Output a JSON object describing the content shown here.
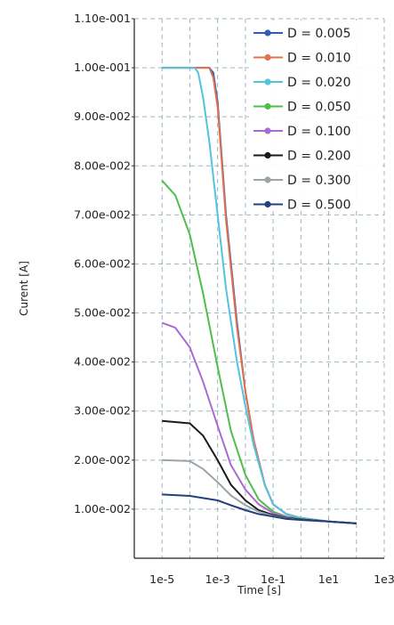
{
  "chart_data": {
    "type": "line",
    "xlabel": "Time [s]",
    "ylabel": "Curent [A]",
    "x_scale": "log",
    "xlim": [
      1e-06,
      1000
    ],
    "ylim": [
      0,
      0.11
    ],
    "x_ticks": [
      {
        "value": 1e-05,
        "label": "1e-5"
      },
      {
        "value": 0.001,
        "label": "1e-3"
      },
      {
        "value": 0.1,
        "label": "1e-1"
      },
      {
        "value": 10,
        "label": "1e1"
      },
      {
        "value": 1000,
        "label": "1e3"
      }
    ],
    "y_ticks": [
      {
        "value": 0.01,
        "label": "1.00e-002"
      },
      {
        "value": 0.02,
        "label": "2.00e-002"
      },
      {
        "value": 0.03,
        "label": "3.00e-002"
      },
      {
        "value": 0.04,
        "label": "4.00e-002"
      },
      {
        "value": 0.05,
        "label": "5.00e-002"
      },
      {
        "value": 0.06,
        "label": "6.00e-002"
      },
      {
        "value": 0.07,
        "label": "7.00e-002"
      },
      {
        "value": 0.08,
        "label": "8.00e-002"
      },
      {
        "value": 0.09,
        "label": "9.00e-002"
      },
      {
        "value": 0.1,
        "label": "1.00e-001"
      },
      {
        "value": 0.11,
        "label": "1.10e-001"
      }
    ],
    "grid": true,
    "legend_position": "top-right",
    "series": [
      {
        "name": "D = 0.005",
        "color": "#2f5fb3",
        "x": [
          1e-05,
          0.0002,
          0.0003,
          0.0005,
          0.0007,
          0.001,
          0.002,
          0.005,
          0.01,
          0.02,
          0.05,
          0.1,
          0.3,
          1,
          10,
          100
        ],
        "y": [
          0.1,
          0.1,
          0.1,
          0.1,
          0.099,
          0.093,
          0.07,
          0.048,
          0.034,
          0.024,
          0.015,
          0.011,
          0.009,
          0.0082,
          0.0075,
          0.0071
        ]
      },
      {
        "name": "D = 0.010",
        "color": "#e2714f",
        "x": [
          1e-05,
          0.0002,
          0.0003,
          0.0005,
          0.0007,
          0.001,
          0.002,
          0.005,
          0.01,
          0.02,
          0.05,
          0.1,
          0.3,
          1,
          10,
          100
        ],
        "y": [
          0.1,
          0.1,
          0.1,
          0.1,
          0.098,
          0.092,
          0.069,
          0.047,
          0.034,
          0.024,
          0.015,
          0.011,
          0.009,
          0.0082,
          0.0075,
          0.0071
        ]
      },
      {
        "name": "D = 0.020",
        "color": "#53c3de",
        "x": [
          1e-05,
          0.0001,
          0.00015,
          0.0002,
          0.0003,
          0.0005,
          0.001,
          0.002,
          0.005,
          0.01,
          0.02,
          0.05,
          0.1,
          0.3,
          1,
          10,
          100
        ],
        "y": [
          0.1,
          0.1,
          0.1,
          0.099,
          0.094,
          0.085,
          0.07,
          0.055,
          0.04,
          0.031,
          0.023,
          0.015,
          0.011,
          0.009,
          0.0082,
          0.0075,
          0.0071
        ]
      },
      {
        "name": "D = 0.050",
        "color": "#4fbe4a",
        "x": [
          1e-05,
          3e-05,
          0.0001,
          0.0003,
          0.001,
          0.003,
          0.01,
          0.03,
          0.1,
          0.3,
          1,
          10,
          100
        ],
        "y": [
          0.077,
          0.074,
          0.066,
          0.054,
          0.039,
          0.026,
          0.017,
          0.012,
          0.0095,
          0.0085,
          0.008,
          0.0075,
          0.0071
        ]
      },
      {
        "name": "D = 0.100",
        "color": "#a96bd2",
        "x": [
          1e-05,
          3e-05,
          0.0001,
          0.0003,
          0.001,
          0.003,
          0.01,
          0.03,
          0.1,
          0.3,
          1,
          10,
          100
        ],
        "y": [
          0.048,
          0.047,
          0.043,
          0.036,
          0.027,
          0.019,
          0.014,
          0.011,
          0.0092,
          0.0084,
          0.0079,
          0.0075,
          0.0071
        ]
      },
      {
        "name": "D = 0.200",
        "color": "#1a1a1a",
        "x": [
          1e-05,
          0.0001,
          0.0003,
          0.001,
          0.003,
          0.01,
          0.03,
          0.1,
          0.3,
          1,
          10,
          100
        ],
        "y": [
          0.028,
          0.0275,
          0.025,
          0.02,
          0.015,
          0.0118,
          0.0098,
          0.0088,
          0.0082,
          0.0079,
          0.0075,
          0.0071
        ]
      },
      {
        "name": "D = 0.300",
        "color": "#9aa5a8",
        "x": [
          1e-05,
          0.0001,
          0.0003,
          0.001,
          0.003,
          0.01,
          0.03,
          0.1,
          0.3,
          1,
          10,
          100
        ],
        "y": [
          0.02,
          0.0198,
          0.0182,
          0.0155,
          0.0128,
          0.0108,
          0.0095,
          0.0086,
          0.0081,
          0.0078,
          0.0075,
          0.0071
        ]
      },
      {
        "name": "D = 0.500",
        "color": "#23407e",
        "x": [
          1e-05,
          0.0001,
          0.001,
          0.003,
          0.01,
          0.03,
          0.1,
          0.3,
          1,
          10,
          100
        ],
        "y": [
          0.013,
          0.0127,
          0.0118,
          0.0108,
          0.0098,
          0.009,
          0.0085,
          0.008,
          0.0078,
          0.0075,
          0.0071
        ]
      }
    ]
  }
}
